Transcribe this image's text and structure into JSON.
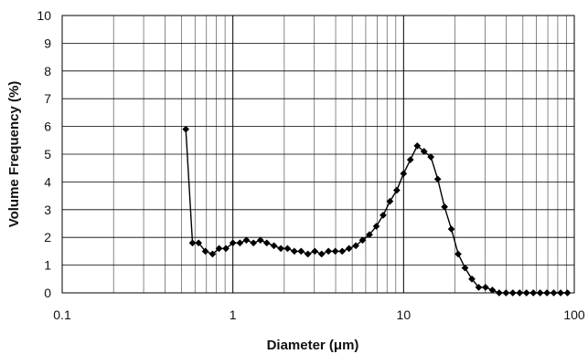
{
  "chart_data": {
    "type": "line",
    "title": "",
    "xlabel": "Diameter (μm)",
    "ylabel": "Volume Frequency (%)",
    "x_scale": "log",
    "xlim": [
      0.1,
      100
    ],
    "ylim": [
      0,
      10
    ],
    "x_ticks": [
      0.1,
      1,
      10,
      100
    ],
    "x_tick_labels": [
      "0.1",
      "1",
      "10",
      "100"
    ],
    "y_ticks": [
      0,
      1,
      2,
      3,
      4,
      5,
      6,
      7,
      8,
      9,
      10
    ],
    "y_tick_labels": [
      "0",
      "1",
      "2",
      "3",
      "4",
      "5",
      "6",
      "7",
      "8",
      "9",
      "10"
    ],
    "grid": true,
    "legend": "none",
    "marker": "diamond",
    "color": "#000000",
    "series": [
      {
        "x": [
          0.53,
          0.58,
          0.63,
          0.69,
          0.76,
          0.83,
          0.91,
          1.0,
          1.1,
          1.2,
          1.32,
          1.45,
          1.58,
          1.74,
          1.91,
          2.09,
          2.29,
          2.51,
          2.75,
          3.02,
          3.31,
          3.63,
          3.98,
          4.37,
          4.79,
          5.25,
          5.75,
          6.31,
          6.92,
          7.59,
          8.32,
          9.12,
          10.0,
          10.96,
          12.02,
          13.18,
          14.45,
          15.85,
          17.38,
          19.05,
          20.89,
          22.91,
          25.12,
          27.54,
          30.2,
          33.11,
          36.31,
          39.81,
          43.65,
          47.86,
          52.48,
          57.54,
          63.1,
          69.18,
          75.86,
          83.18,
          91.2
        ],
        "y": [
          5.9,
          1.8,
          1.8,
          1.5,
          1.4,
          1.6,
          1.6,
          1.8,
          1.8,
          1.9,
          1.8,
          1.9,
          1.8,
          1.7,
          1.6,
          1.6,
          1.5,
          1.5,
          1.4,
          1.5,
          1.4,
          1.5,
          1.5,
          1.5,
          1.6,
          1.7,
          1.9,
          2.1,
          2.4,
          2.8,
          3.3,
          3.7,
          4.3,
          4.8,
          5.3,
          5.1,
          4.9,
          4.1,
          3.1,
          2.3,
          1.4,
          0.9,
          0.5,
          0.2,
          0.2,
          0.1,
          0.0,
          0.0,
          0.0,
          0.0,
          0.0,
          0.0,
          0.0,
          0.0,
          0.0,
          0.0,
          0.0
        ]
      }
    ]
  }
}
